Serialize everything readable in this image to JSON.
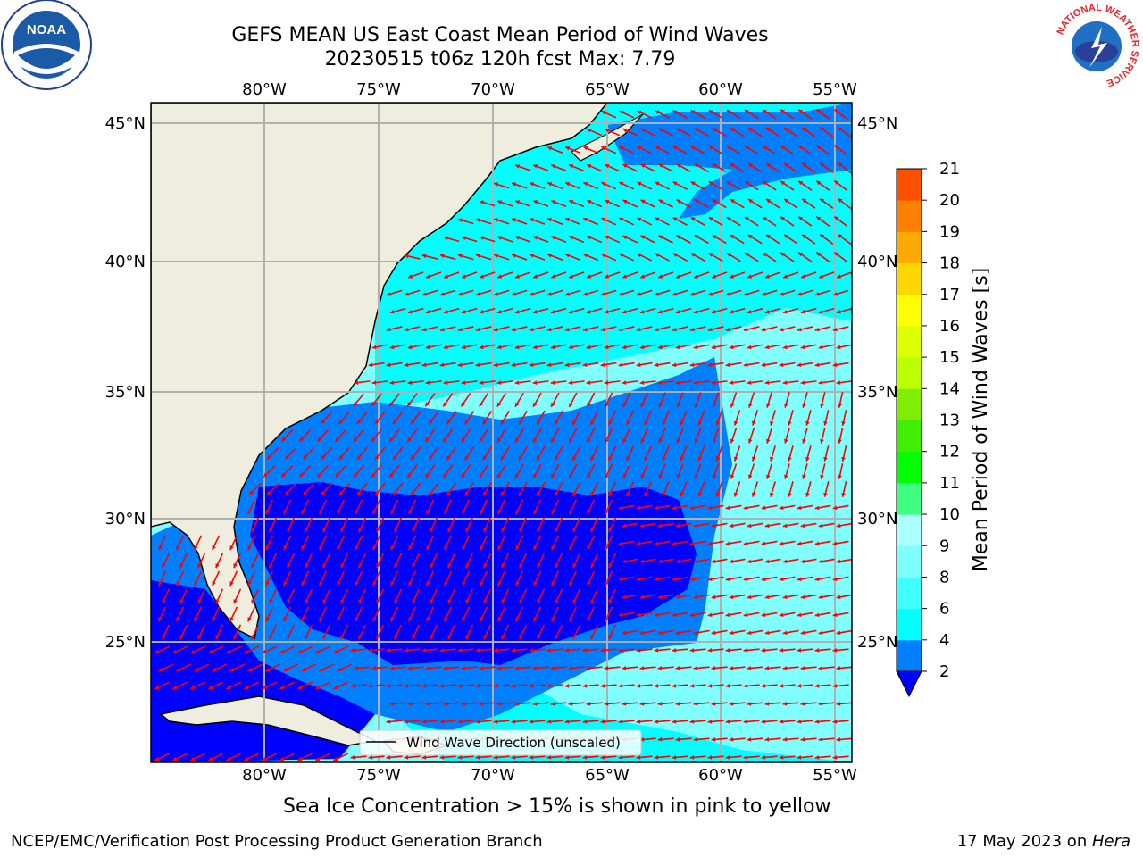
{
  "title": {
    "line1": "GEFS MEAN US East Coast Mean Period of Wind Waves",
    "line2": "20230515 t06z 120h fcst   Max: 7.79"
  },
  "map": {
    "lon_labels": [
      "80°W",
      "75°W",
      "70°W",
      "65°W",
      "60°W",
      "55°W"
    ],
    "lat_labels": [
      "45°N",
      "40°N",
      "35°N",
      "30°N",
      "25°N"
    ],
    "legend_label": "Wind Wave Direction (unscaled)",
    "arrow_color": "#ff0000",
    "land_color": "#efedde",
    "ocean_colors": [
      "#0000ff",
      "#0080ff",
      "#00ffff",
      "#80ffff"
    ]
  },
  "colorbar": {
    "label": "Mean Period of Wind Waves [s]",
    "ticks": [
      "2",
      "4",
      "6",
      "8",
      "9",
      "10",
      "11",
      "12",
      "13",
      "14",
      "15",
      "16",
      "17",
      "18",
      "19",
      "20",
      "21"
    ],
    "colors": [
      "#0080ff",
      "#00ffff",
      "#40ffff",
      "#80ffff",
      "#aaffff",
      "#40ff80",
      "#00ff00",
      "#40ee00",
      "#80ee00",
      "#bbff00",
      "#ddff00",
      "#ffff00",
      "#ffd700",
      "#ffaa00",
      "#ff8000",
      "#ff5000",
      "#ff2000",
      "#ff0000"
    ],
    "under_color": "#0000ff"
  },
  "caption": "Sea Ice Concentration > 15% is shown in pink to yellow",
  "footer": {
    "left": "NCEP/EMC/Verification Post Processing Product Generation Branch",
    "right_date": "17 May 2023 on ",
    "right_host": "Hera"
  },
  "logos": {
    "noaa": "NOAA",
    "nws_ring": "NATIONAL WEATHER SERVICE"
  }
}
